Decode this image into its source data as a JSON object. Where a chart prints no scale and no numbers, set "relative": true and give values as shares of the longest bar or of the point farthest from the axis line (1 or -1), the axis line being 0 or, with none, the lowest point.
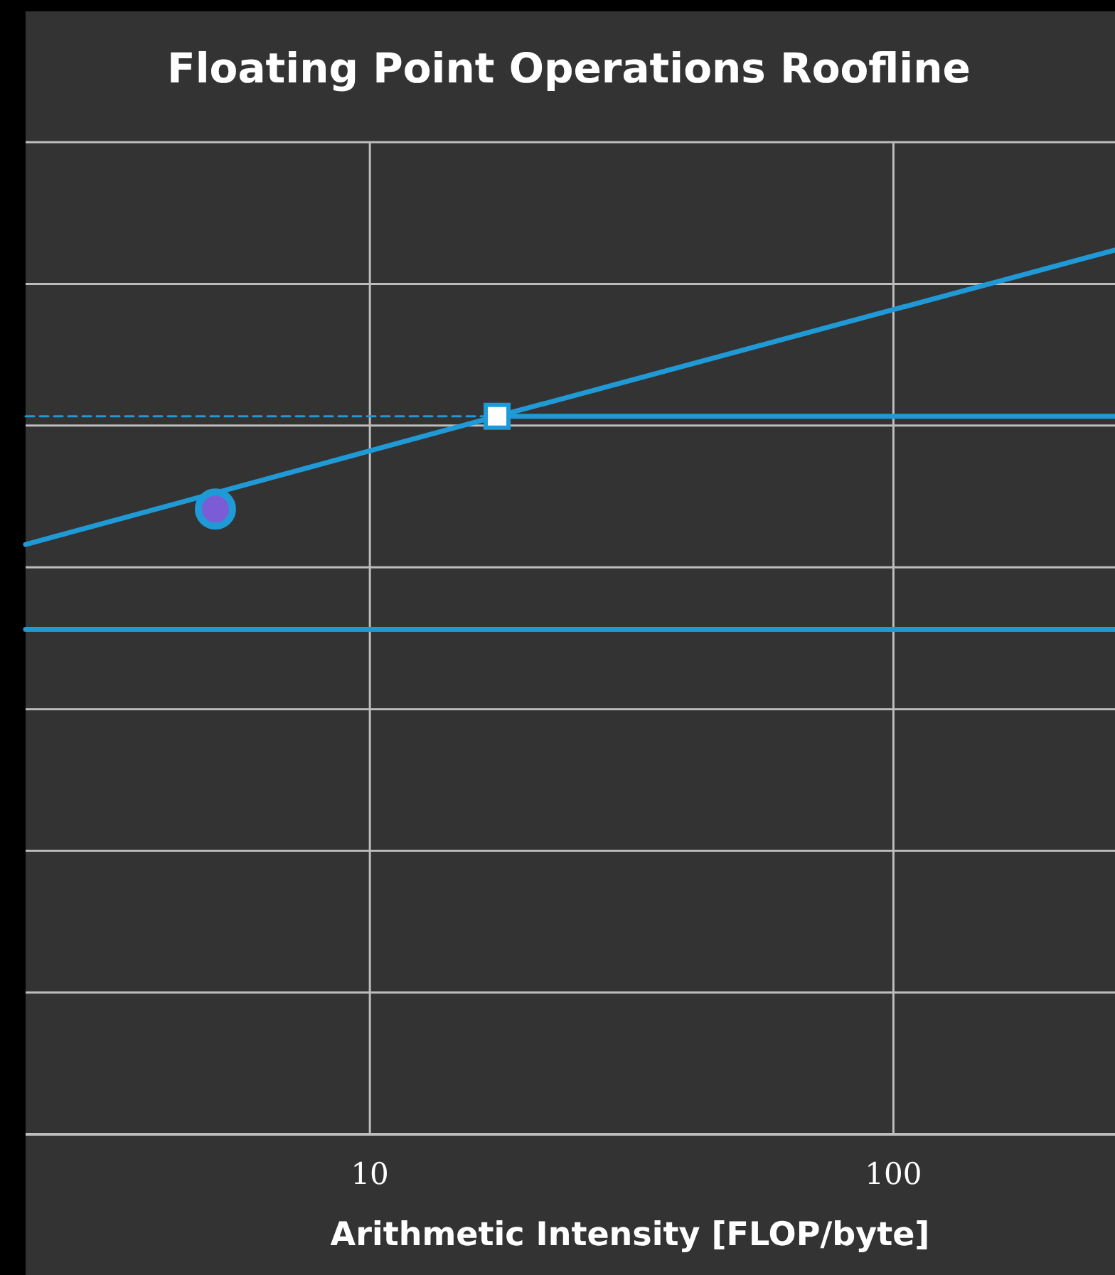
{
  "chart_data": {
    "type": "line",
    "title": "Floating Point Operations Roofline",
    "xlabel": "Arithmetic Intensity [FLOP/byte]",
    "log": "x",
    "relative": true,
    "xlim": [
      2.2,
      265
    ],
    "xticks": [
      10,
      100
    ],
    "grid": true,
    "series": [
      {
        "color": "#1f9ad6",
        "x": [
          2.2,
          17.5
        ],
        "values": [
          0.667,
          0.812
        ],
        "line_style": "solid"
      },
      {
        "color": "#1f9ad6",
        "x": [
          17.5,
          265
        ],
        "values": [
          0.812,
          1
        ],
        "line_style": "solid"
      },
      {
        "color": "#1f9ad6",
        "x": [
          2.2,
          17.5
        ],
        "values": [
          0.812,
          0.812
        ],
        "line_style": "dashed"
      },
      {
        "color": "#1f9ad6",
        "x": [
          17.5,
          265
        ],
        "values": [
          0.812,
          0.812
        ],
        "line_style": "solid"
      },
      {
        "color": "#1f9ad6",
        "x": [
          2.2,
          265
        ],
        "values": [
          0.571,
          0.571
        ],
        "line_style": "solid"
      },
      {
        "type": "scatter",
        "color": "#7b5cd6",
        "x": [
          5.07
        ],
        "values": [
          0.707
        ],
        "marker": "circle"
      },
      {
        "type": "scatter",
        "color": "#ffffff",
        "x": [
          17.5
        ],
        "values": [
          0.812
        ],
        "marker": "square"
      }
    ]
  }
}
